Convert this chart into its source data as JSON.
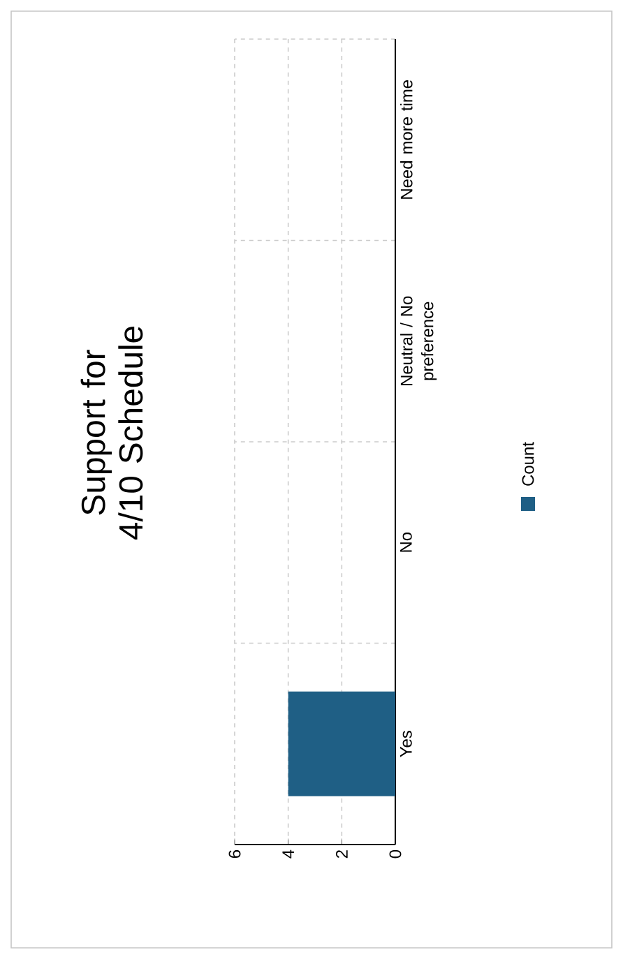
{
  "chart_data": {
    "type": "bar",
    "orientation": "horizontal",
    "title": "Support for 4/10 Schedule",
    "categories": [
      "Need more time",
      "Neutral / No preference",
      "No",
      "Yes"
    ],
    "series": [
      {
        "name": "Count",
        "color": "#1f5f85",
        "values": [
          0,
          0,
          0,
          4
        ]
      }
    ],
    "xlim": [
      6,
      0
    ],
    "xticks": [
      0,
      2,
      4,
      6
    ],
    "grid": true,
    "legend": "right"
  }
}
